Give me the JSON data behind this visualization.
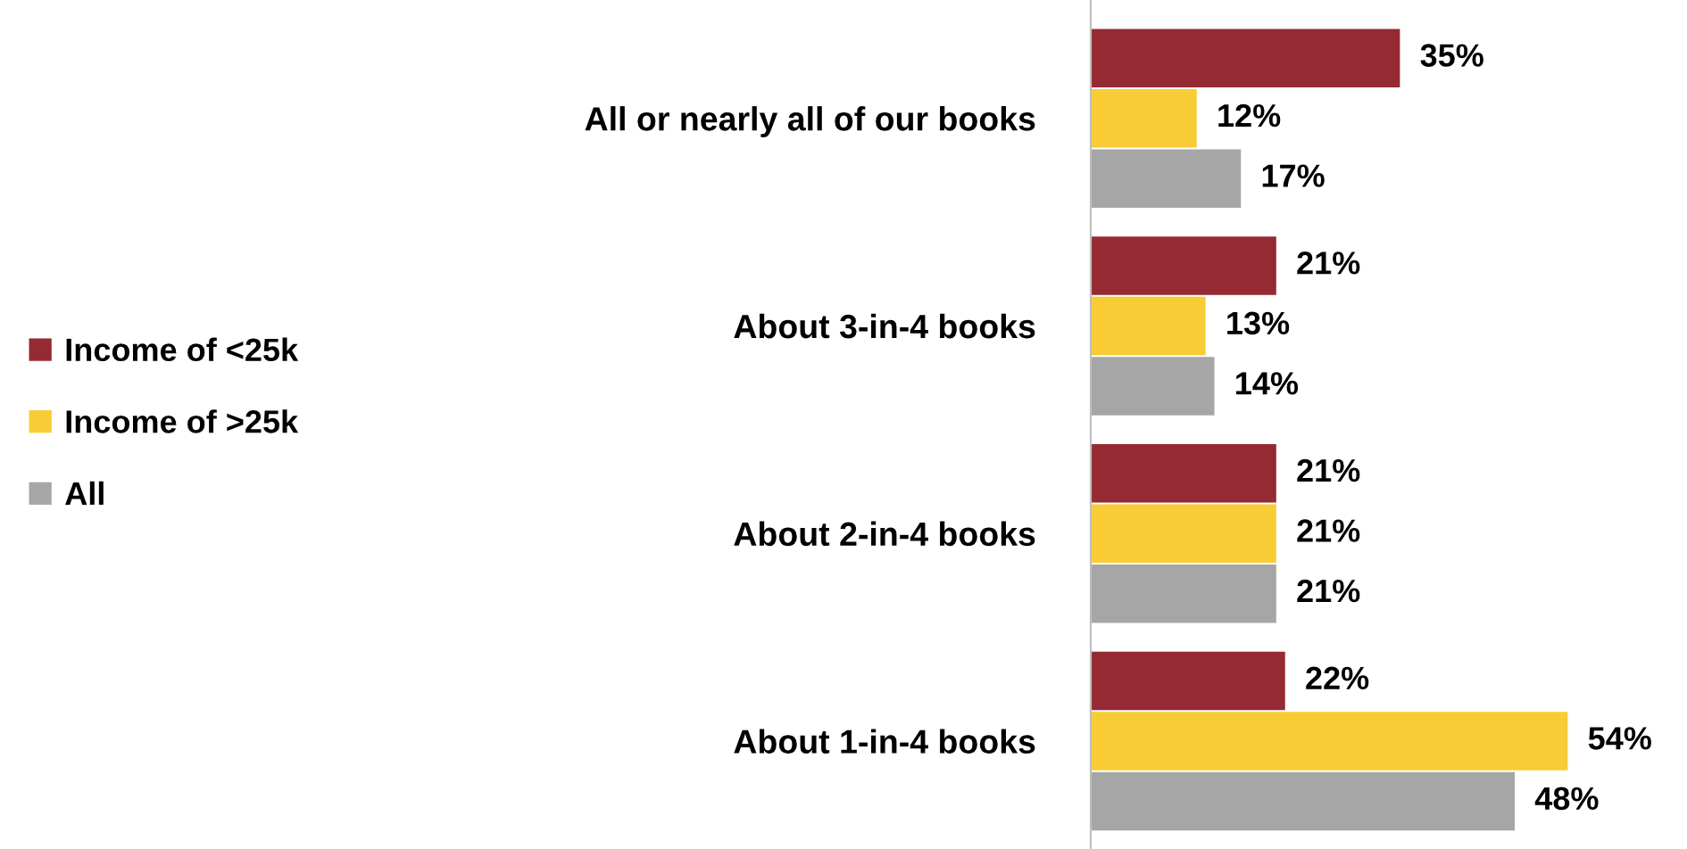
{
  "chart_data": {
    "type": "bar",
    "orientation": "horizontal",
    "categories": [
      "All or nearly all of our books",
      "About 3-in-4 books",
      "About 2-in-4 books",
      "About 1-in-4 books"
    ],
    "series": [
      {
        "name": "Income of <25k",
        "color": "#952a33",
        "values": [
          35,
          21,
          21,
          22
        ],
        "value_labels": [
          "35%",
          "21%",
          "21%",
          "22%"
        ]
      },
      {
        "name": "Income of >25k",
        "color": "#f8cc35",
        "values": [
          12,
          13,
          21,
          54
        ],
        "value_labels": [
          "12%",
          "13%",
          "21%",
          "54%"
        ]
      },
      {
        "name": "All",
        "color": "#a6a6a6",
        "values": [
          17,
          14,
          21,
          48
        ],
        "value_labels": [
          "17%",
          "14%",
          "21%",
          "48%"
        ]
      }
    ],
    "legend": "left",
    "grid": false
  }
}
